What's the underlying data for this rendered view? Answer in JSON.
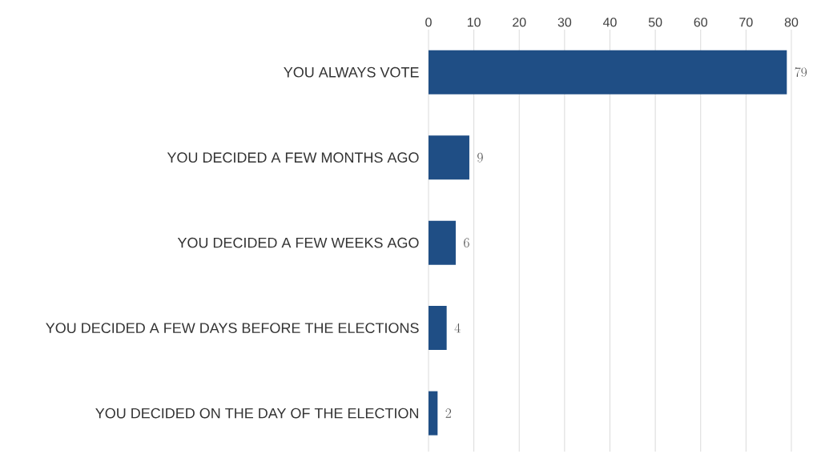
{
  "chart_data": {
    "type": "bar",
    "orientation": "horizontal",
    "categories": [
      "YOU ALWAYS VOTE",
      "YOU DECIDED A FEW MONTHS AGO",
      "YOU DECIDED A FEW WEEKS AGO",
      "YOU DECIDED A FEW DAYS BEFORE THE ELECTIONS",
      "YOU DECIDED ON THE DAY OF THE ELECTION"
    ],
    "values": [
      79,
      9,
      6,
      4,
      2
    ],
    "color": "#1f4e85",
    "xlim": [
      0,
      80
    ],
    "xticks": [
      0,
      10,
      20,
      30,
      40,
      50,
      60,
      70,
      80
    ],
    "grid": "x",
    "data_labels": true
  }
}
